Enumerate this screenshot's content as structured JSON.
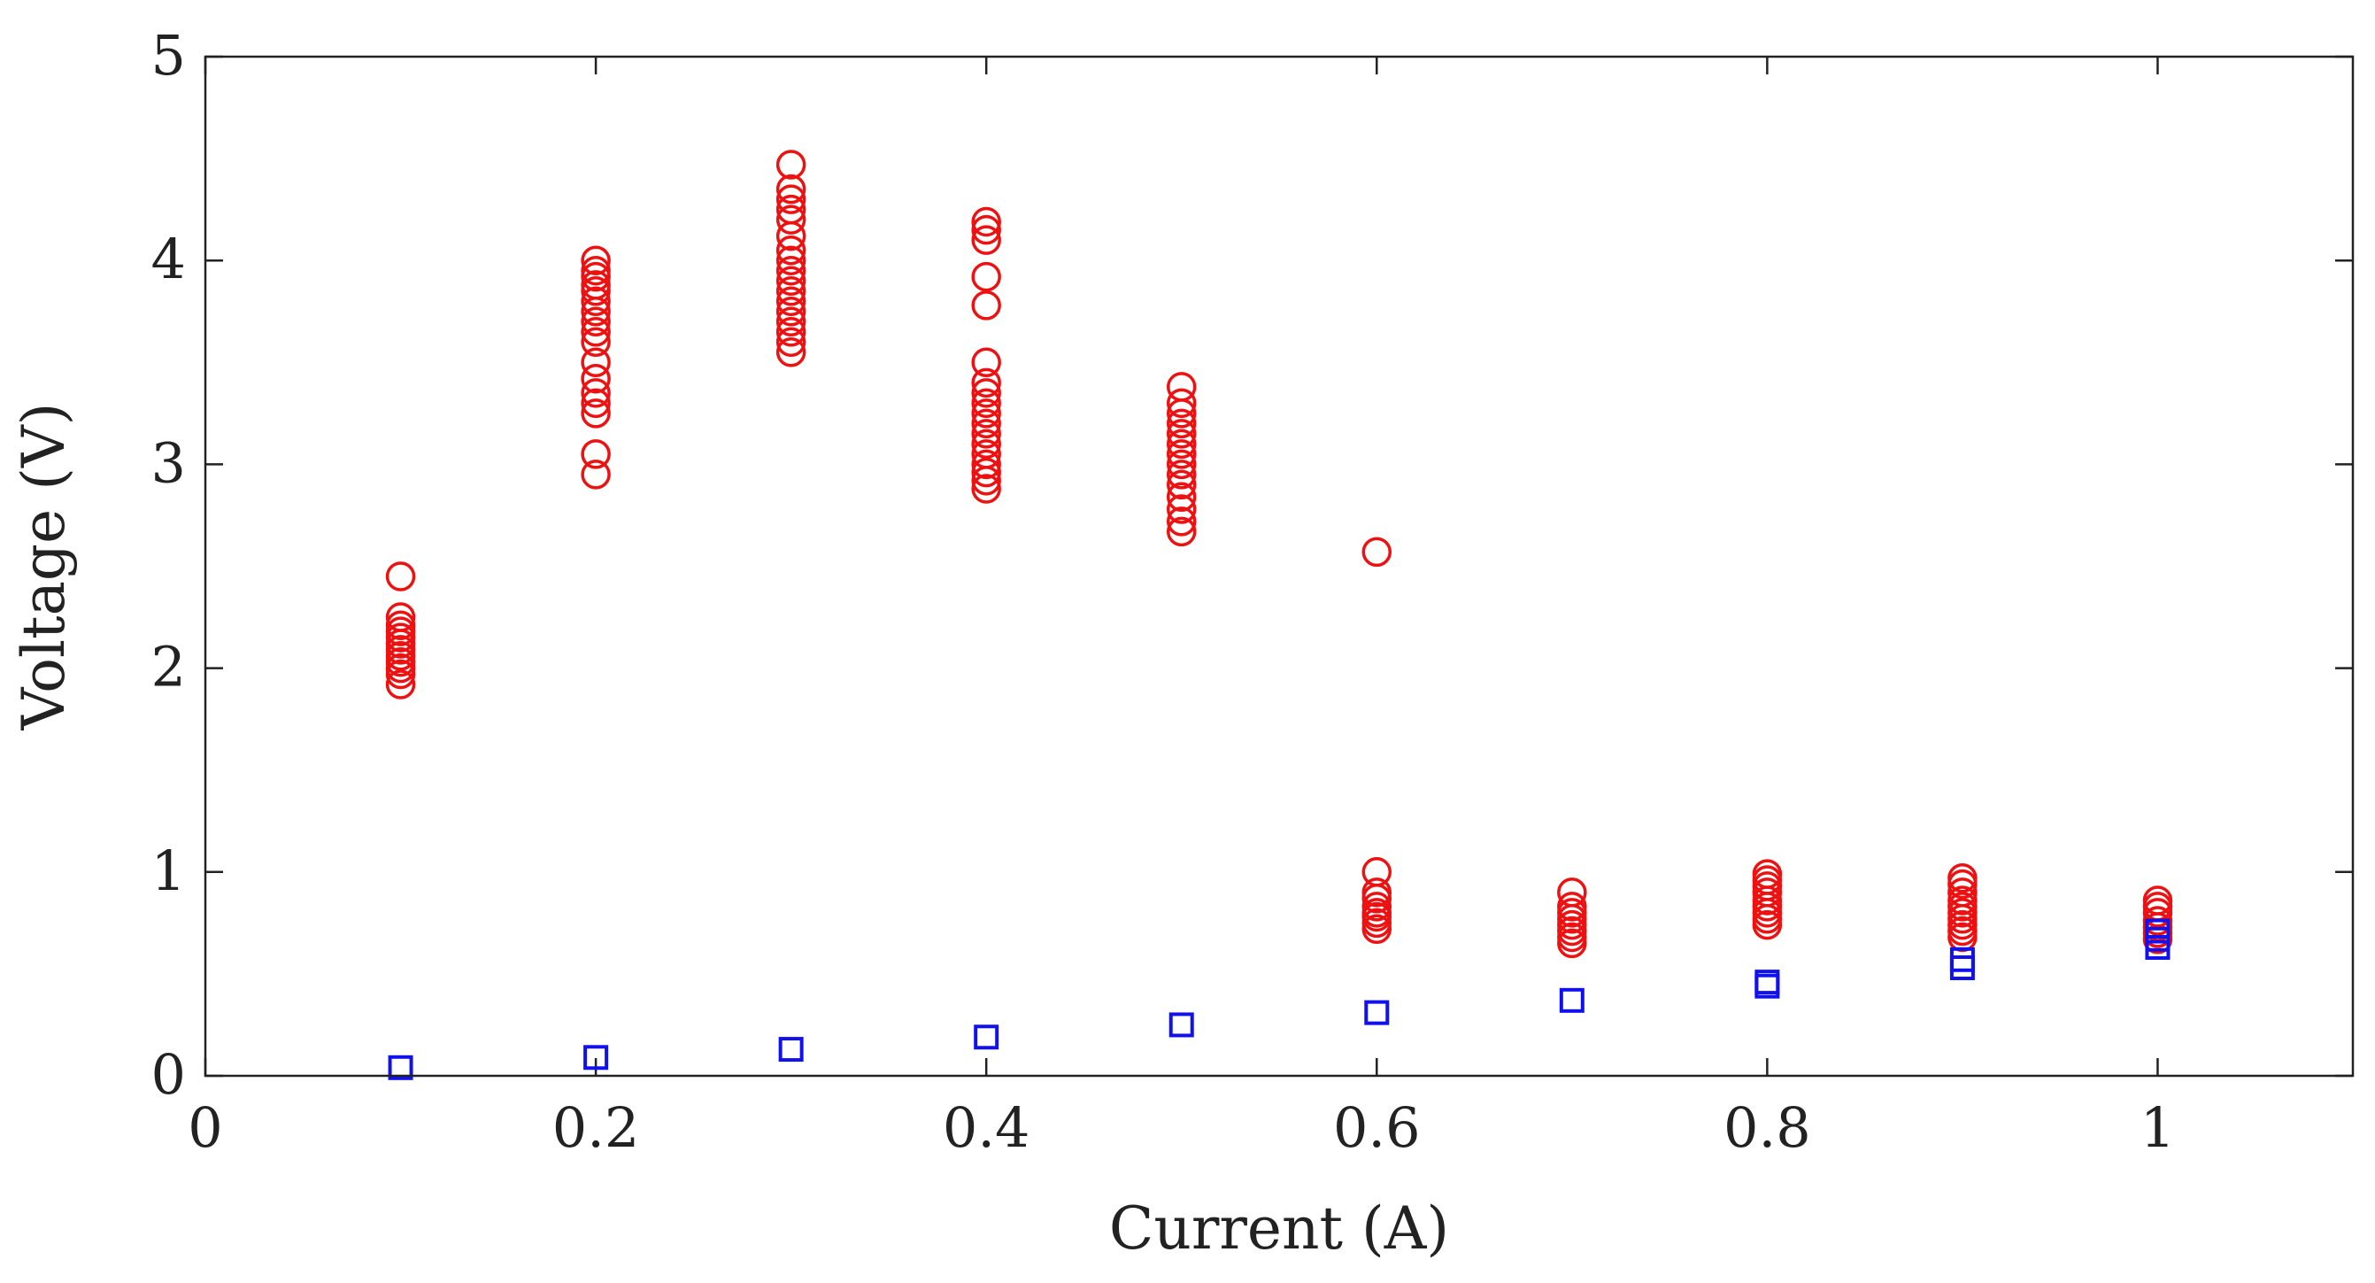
{
  "chart_data": {
    "type": "scatter",
    "title": "",
    "xlabel": "Current (A)",
    "ylabel": "Voltage (V)",
    "xlim": [
      0,
      1.1
    ],
    "ylim": [
      0,
      5
    ],
    "xticks": [
      0,
      0.2,
      0.4,
      0.6,
      0.8,
      1
    ],
    "xtick_labels": [
      "0",
      "0.2",
      "0.4",
      "0.6",
      "0.8",
      "1"
    ],
    "yticks": [
      0,
      1,
      2,
      3,
      4,
      5
    ],
    "ytick_labels": [
      "0",
      "1",
      "2",
      "3",
      "4",
      "5"
    ],
    "grid": false,
    "legend": "none",
    "series": [
      {
        "marker": "circle",
        "color": "#ee1111",
        "points": [
          [
            0.1,
            1.92
          ],
          [
            0.1,
            1.97
          ],
          [
            0.1,
            2.0
          ],
          [
            0.1,
            2.03
          ],
          [
            0.1,
            2.06
          ],
          [
            0.1,
            2.09
          ],
          [
            0.1,
            2.12
          ],
          [
            0.1,
            2.15
          ],
          [
            0.1,
            2.18
          ],
          [
            0.1,
            2.21
          ],
          [
            0.1,
            2.25
          ],
          [
            0.1,
            2.45
          ],
          [
            0.2,
            2.95
          ],
          [
            0.2,
            3.05
          ],
          [
            0.2,
            3.25
          ],
          [
            0.2,
            3.3
          ],
          [
            0.2,
            3.35
          ],
          [
            0.2,
            3.42
          ],
          [
            0.2,
            3.5
          ],
          [
            0.2,
            3.6
          ],
          [
            0.2,
            3.65
          ],
          [
            0.2,
            3.7
          ],
          [
            0.2,
            3.75
          ],
          [
            0.2,
            3.8
          ],
          [
            0.2,
            3.85
          ],
          [
            0.2,
            3.88
          ],
          [
            0.2,
            3.92
          ],
          [
            0.2,
            3.95
          ],
          [
            0.2,
            4.0
          ],
          [
            0.3,
            3.55
          ],
          [
            0.3,
            3.6
          ],
          [
            0.3,
            3.65
          ],
          [
            0.3,
            3.7
          ],
          [
            0.3,
            3.75
          ],
          [
            0.3,
            3.8
          ],
          [
            0.3,
            3.85
          ],
          [
            0.3,
            3.9
          ],
          [
            0.3,
            3.95
          ],
          [
            0.3,
            4.0
          ],
          [
            0.3,
            4.05
          ],
          [
            0.3,
            4.12
          ],
          [
            0.3,
            4.2
          ],
          [
            0.3,
            4.25
          ],
          [
            0.3,
            4.3
          ],
          [
            0.3,
            4.35
          ],
          [
            0.3,
            4.47
          ],
          [
            0.4,
            2.88
          ],
          [
            0.4,
            2.92
          ],
          [
            0.4,
            2.96
          ],
          [
            0.4,
            3.0
          ],
          [
            0.4,
            3.05
          ],
          [
            0.4,
            3.1
          ],
          [
            0.4,
            3.15
          ],
          [
            0.4,
            3.2
          ],
          [
            0.4,
            3.25
          ],
          [
            0.4,
            3.3
          ],
          [
            0.4,
            3.35
          ],
          [
            0.4,
            3.4
          ],
          [
            0.4,
            3.5
          ],
          [
            0.4,
            3.78
          ],
          [
            0.4,
            3.92
          ],
          [
            0.4,
            4.1
          ],
          [
            0.4,
            4.15
          ],
          [
            0.4,
            4.19
          ],
          [
            0.5,
            2.67
          ],
          [
            0.5,
            2.72
          ],
          [
            0.5,
            2.78
          ],
          [
            0.5,
            2.84
          ],
          [
            0.5,
            2.9
          ],
          [
            0.5,
            2.95
          ],
          [
            0.5,
            3.0
          ],
          [
            0.5,
            3.05
          ],
          [
            0.5,
            3.1
          ],
          [
            0.5,
            3.15
          ],
          [
            0.5,
            3.2
          ],
          [
            0.5,
            3.25
          ],
          [
            0.5,
            3.3
          ],
          [
            0.5,
            3.38
          ],
          [
            0.6,
            0.72
          ],
          [
            0.6,
            0.75
          ],
          [
            0.6,
            0.78
          ],
          [
            0.6,
            0.8
          ],
          [
            0.6,
            0.83
          ],
          [
            0.6,
            0.87
          ],
          [
            0.6,
            0.9
          ],
          [
            0.6,
            1.0
          ],
          [
            0.6,
            2.57
          ],
          [
            0.7,
            0.65
          ],
          [
            0.7,
            0.68
          ],
          [
            0.7,
            0.71
          ],
          [
            0.7,
            0.74
          ],
          [
            0.7,
            0.77
          ],
          [
            0.7,
            0.8
          ],
          [
            0.7,
            0.83
          ],
          [
            0.7,
            0.9
          ],
          [
            0.8,
            0.74
          ],
          [
            0.8,
            0.77
          ],
          [
            0.8,
            0.8
          ],
          [
            0.8,
            0.83
          ],
          [
            0.8,
            0.86
          ],
          [
            0.8,
            0.9
          ],
          [
            0.8,
            0.93
          ],
          [
            0.8,
            0.96
          ],
          [
            0.8,
            0.99
          ],
          [
            0.9,
            0.68
          ],
          [
            0.9,
            0.71
          ],
          [
            0.9,
            0.74
          ],
          [
            0.9,
            0.77
          ],
          [
            0.9,
            0.8
          ],
          [
            0.9,
            0.83
          ],
          [
            0.9,
            0.86
          ],
          [
            0.9,
            0.9
          ],
          [
            0.9,
            0.94
          ],
          [
            0.9,
            0.97
          ],
          [
            1.0,
            0.67
          ],
          [
            1.0,
            0.7
          ],
          [
            1.0,
            0.73
          ],
          [
            1.0,
            0.76
          ],
          [
            1.0,
            0.8
          ],
          [
            1.0,
            0.83
          ],
          [
            1.0,
            0.86
          ]
        ]
      },
      {
        "marker": "square",
        "color": "#1111ee",
        "points": [
          [
            0.1,
            0.04
          ],
          [
            0.2,
            0.09
          ],
          [
            0.3,
            0.13
          ],
          [
            0.4,
            0.19
          ],
          [
            0.5,
            0.25
          ],
          [
            0.6,
            0.31
          ],
          [
            0.7,
            0.37
          ],
          [
            0.8,
            0.44
          ],
          [
            0.8,
            0.46
          ],
          [
            0.9,
            0.53
          ],
          [
            0.9,
            0.57
          ],
          [
            1.0,
            0.63
          ],
          [
            1.0,
            0.67
          ],
          [
            1.0,
            0.71
          ]
        ]
      }
    ]
  }
}
